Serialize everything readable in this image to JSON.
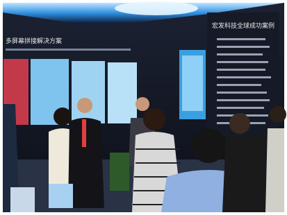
{
  "banners": {
    "left_heading": "多屏幕拼接解决方案",
    "right_heading": "宏发科技全球成功案例"
  }
}
